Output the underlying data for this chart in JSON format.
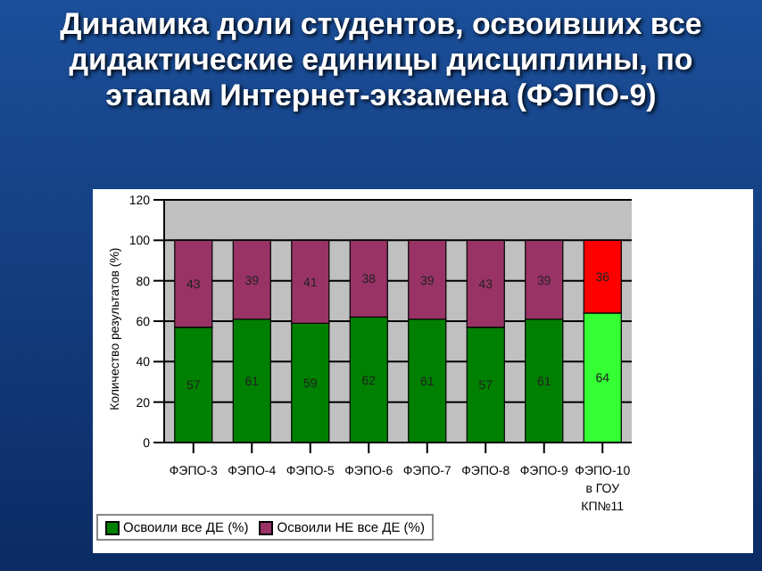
{
  "chart_data": {
    "type": "bar",
    "stacked": true,
    "title": "Динамика доли студентов, освоивших все дидактические единицы дисциплины, по этапам Интернет-экзамена (ФЭПО-9)",
    "ylabel": "Количество результатов (%)",
    "categories": [
      "ФЭПО-3",
      "ФЭПО-4",
      "ФЭПО-5",
      "ФЭПО-6",
      "ФЭПО-7",
      "ФЭПО-8",
      "ФЭПО-9",
      "ФЭПО-10 в ГОУ КП№11"
    ],
    "series": [
      {
        "name": "Освоили все ДЕ (%)",
        "color": "#008000",
        "colors": [
          "#008000",
          "#008000",
          "#008000",
          "#008000",
          "#008000",
          "#008000",
          "#008000",
          "#33ff33"
        ],
        "values": [
          57,
          61,
          59,
          62,
          61,
          57,
          61,
          64
        ]
      },
      {
        "name": "Освоили НЕ все ДЕ (%)",
        "color": "#993366",
        "colors": [
          "#993366",
          "#993366",
          "#993366",
          "#993366",
          "#993366",
          "#993366",
          "#993366",
          "#ff0000"
        ],
        "values": [
          43,
          39,
          41,
          38,
          39,
          43,
          39,
          36
        ]
      }
    ],
    "ylim": [
      0,
      120
    ],
    "yticks": [
      0,
      20,
      40,
      60,
      80,
      100,
      120
    ],
    "grid": "y",
    "legend": "bottom left",
    "data_labels": true
  }
}
